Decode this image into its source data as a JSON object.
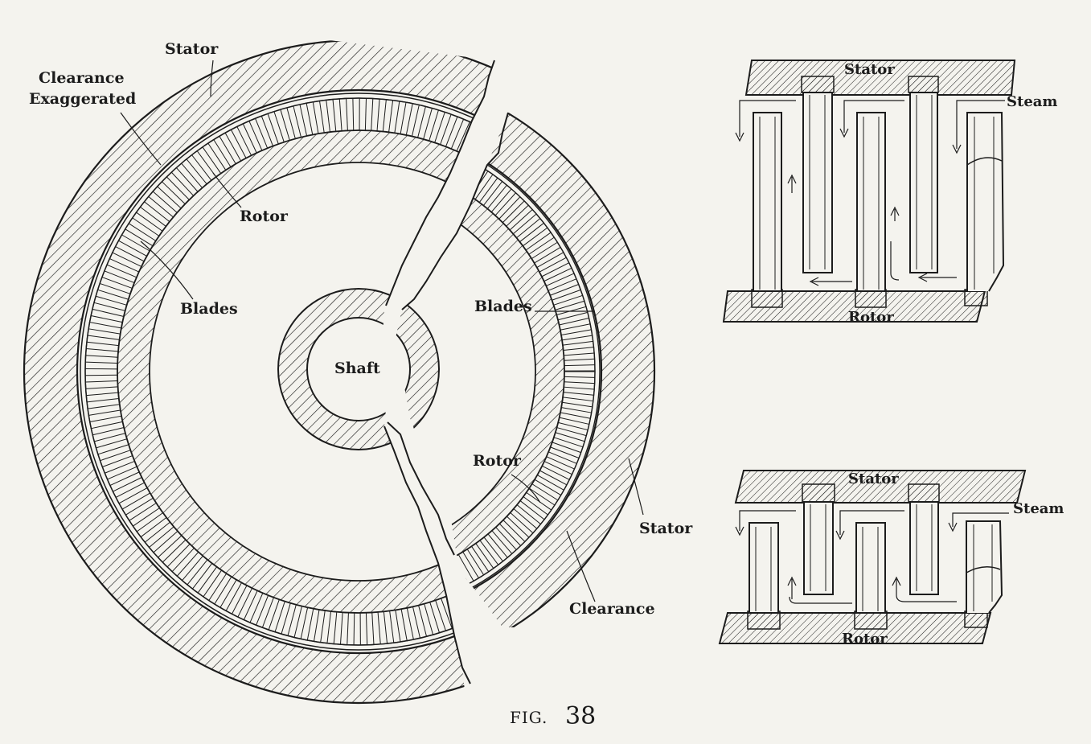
{
  "colors": {
    "ink": "#1c1c1c",
    "paper": "#f4f3ee"
  },
  "main_figure": {
    "stator_label": "Stator",
    "clearance_label_line1": "Clearance",
    "clearance_label_line2": "Exaggerated",
    "rotor_label": "Rotor",
    "blades_label": "Blades",
    "shaft_label": "Shaft",
    "blades_label_right": "Blades",
    "rotor_label_right": "Rotor",
    "stator_label_right": "Stator",
    "clearance_label_right": "Clearance"
  },
  "detail_top": {
    "stator_label": "Stator",
    "steam_label": "Steam",
    "rotor_label": "Rotor"
  },
  "detail_bottom": {
    "stator_label": "Stator",
    "steam_label": "Steam",
    "rotor_label": "Rotor"
  },
  "caption": {
    "prefix": "FIG.",
    "number": "38"
  }
}
